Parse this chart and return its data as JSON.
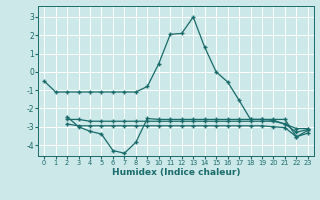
{
  "color": "#1a6b6b",
  "bg_color": "#cce8e8",
  "grid_color": "#ffffff",
  "xlabel": "Humidex (Indice chaleur)",
  "ylim": [
    -4.6,
    3.6
  ],
  "xlim": [
    -0.5,
    23.5
  ],
  "yticks": [
    -4,
    -3,
    -2,
    -1,
    0,
    1,
    2,
    3
  ],
  "xticks": [
    0,
    1,
    2,
    3,
    4,
    5,
    6,
    7,
    8,
    9,
    10,
    11,
    12,
    13,
    14,
    15,
    16,
    17,
    18,
    19,
    20,
    21,
    22,
    23
  ],
  "curve_a_x": [
    0,
    1,
    2,
    3,
    4,
    5,
    6,
    7,
    8,
    9,
    10,
    11,
    12,
    13,
    14,
    15,
    16,
    17,
    18,
    19,
    20,
    21,
    22,
    23
  ],
  "curve_a_y": [
    -0.5,
    -1.1,
    -1.1,
    -1.1,
    -1.1,
    -1.1,
    -1.1,
    -1.1,
    -1.1,
    -0.8,
    0.45,
    2.05,
    2.1,
    3.0,
    1.35,
    0.0,
    -0.55,
    -1.55,
    -2.6,
    -2.6,
    -2.65,
    -2.85,
    -3.3,
    -3.15
  ],
  "curve_b_x": [
    2,
    3,
    4,
    5,
    6,
    7,
    8,
    9,
    10,
    11,
    12,
    13,
    14,
    15,
    16,
    17,
    18,
    19,
    20,
    21,
    22,
    23
  ],
  "curve_b_y": [
    -2.45,
    -3.0,
    -3.25,
    -3.4,
    -4.3,
    -4.45,
    -3.85,
    -2.55,
    -2.6,
    -2.6,
    -2.6,
    -2.6,
    -2.6,
    -2.6,
    -2.6,
    -2.6,
    -2.6,
    -2.6,
    -2.6,
    -2.6,
    -3.55,
    -3.2
  ],
  "curve_c_x": [
    2,
    3,
    4,
    5,
    6,
    7,
    8,
    9,
    10,
    11,
    12,
    13,
    14,
    15,
    16,
    17,
    18,
    19,
    20,
    21,
    22,
    23
  ],
  "curve_c_y": [
    -2.6,
    -2.6,
    -2.7,
    -2.7,
    -2.7,
    -2.7,
    -2.7,
    -2.7,
    -2.7,
    -2.7,
    -2.7,
    -2.7,
    -2.7,
    -2.7,
    -2.7,
    -2.7,
    -2.7,
    -2.7,
    -2.7,
    -2.85,
    -3.1,
    -3.1
  ],
  "curve_d_x": [
    2,
    3,
    4,
    5,
    6,
    7,
    8,
    9,
    10,
    11,
    12,
    13,
    14,
    15,
    16,
    17,
    18,
    19,
    20,
    21,
    22,
    23
  ],
  "curve_d_y": [
    -2.85,
    -2.95,
    -2.95,
    -2.95,
    -2.95,
    -2.95,
    -2.95,
    -2.95,
    -2.95,
    -2.95,
    -2.95,
    -2.95,
    -2.95,
    -2.95,
    -2.95,
    -2.95,
    -2.95,
    -2.95,
    -3.0,
    -3.05,
    -3.55,
    -3.35
  ]
}
